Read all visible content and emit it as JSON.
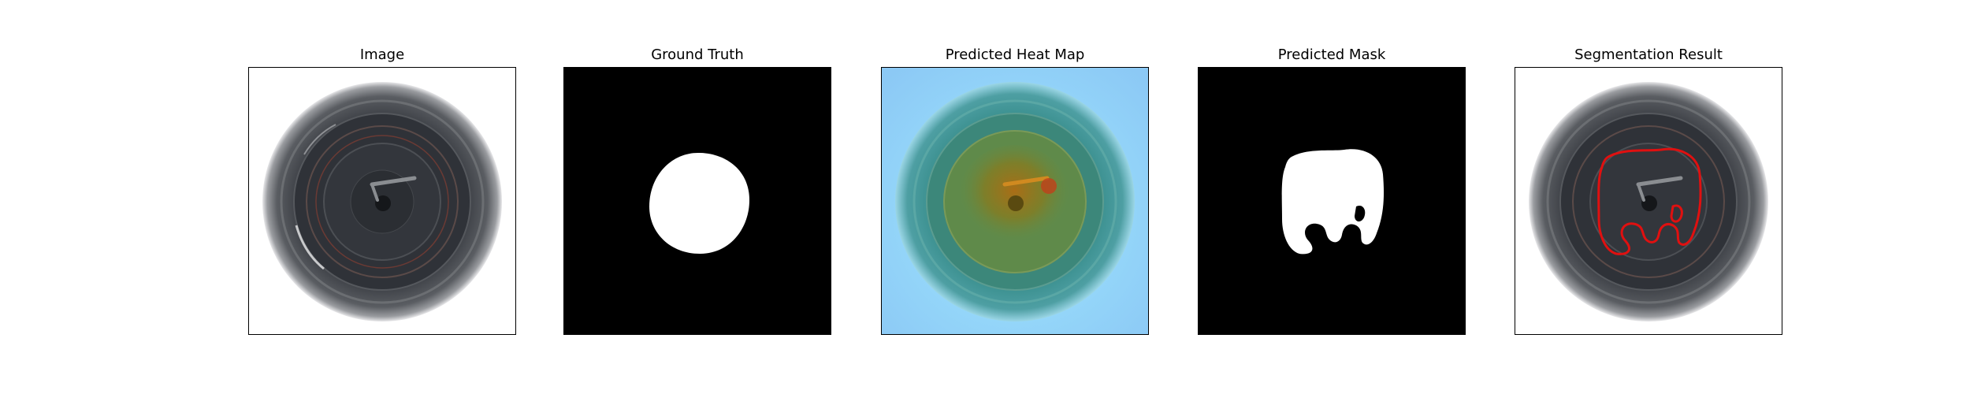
{
  "figure": {
    "panels": [
      {
        "title": "Image",
        "kind": "image"
      },
      {
        "title": "Ground Truth",
        "kind": "ground-truth-mask"
      },
      {
        "title": "Predicted Heat Map",
        "kind": "heat-map"
      },
      {
        "title": "Predicted Mask",
        "kind": "predicted-mask"
      },
      {
        "title": "Segmentation Result",
        "kind": "segmentation-overlay"
      }
    ],
    "colors": {
      "background": "#ffffff",
      "frame_border": "#000000",
      "mask_foreground": "#ffffff",
      "mask_background": "#000000",
      "contour": "#e01010"
    }
  }
}
